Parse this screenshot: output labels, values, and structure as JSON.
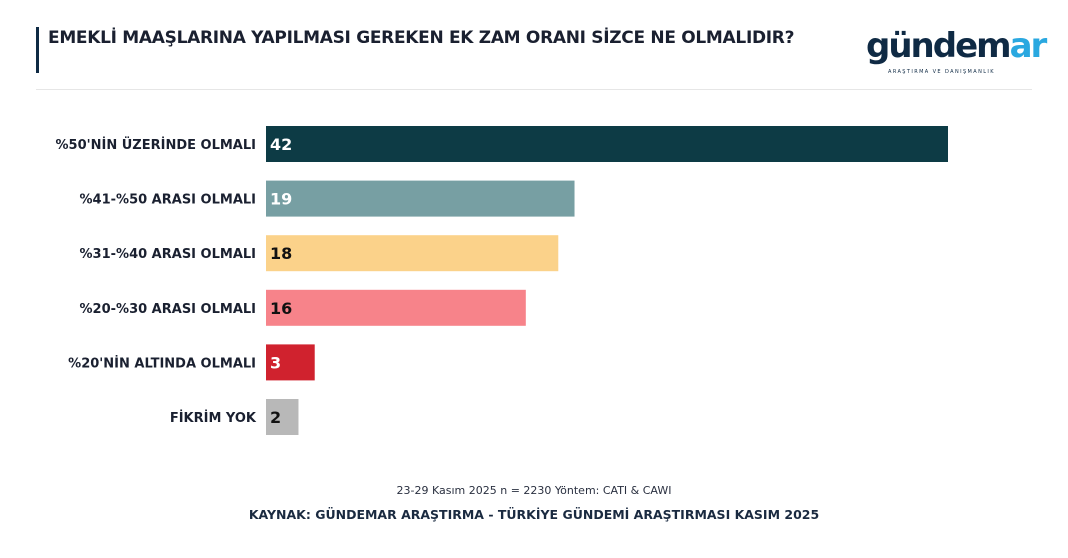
{
  "title": "EMEKLİ MAAŞLARINA YAPILMASI GEREKEN EK ZAM ORANI SİZCE NE OLMALIDIR?",
  "logo": {
    "text": "gündemar",
    "tagline": "ARAŞTIRMA VE DANIŞMANLIK"
  },
  "meta": "23-29 Kasım 2025 n = 2230 Yöntem: CATI & CAWI",
  "source": "KAYNAK: GÜNDEMAR ARAŞTIRMA - TÜRKİYE GÜNDEMİ ARAŞTIRMASI KASIM 2025",
  "chart_data": {
    "type": "bar",
    "orientation": "horizontal",
    "categories": [
      "%50'NİN ÜZERİNDE OLMALI",
      "%41-%50 ARASI OLMALI",
      "%31-%40 ARASI OLMALI",
      "%20-%30 ARASI OLMALI",
      "%20'NİN ALTINDA OLMALI",
      "FİKRİM YOK"
    ],
    "values": [
      42,
      19,
      18,
      16,
      3,
      2
    ],
    "colors": [
      "#0d3b45",
      "#779fa3",
      "#fbd28a",
      "#f7838a",
      "#d0222e",
      "#b8b8b8"
    ],
    "label_colors": [
      "#ffffff",
      "#ffffff",
      "#111111",
      "#111111",
      "#ffffff",
      "#111111"
    ],
    "grid": false,
    "data_labels": true
  }
}
